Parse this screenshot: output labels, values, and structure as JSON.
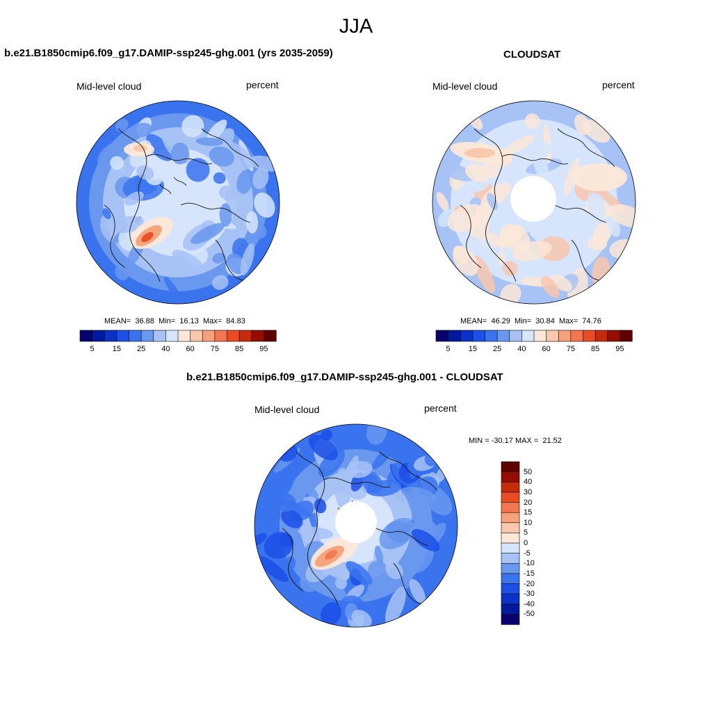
{
  "season": "JJA",
  "colors": {
    "abs_palette": [
      "#08006e",
      "#001a9e",
      "#0a32c8",
      "#1b4fe6",
      "#3a73ee",
      "#6a98ee",
      "#a7c2f4",
      "#d6e5fb",
      "#fce8d8",
      "#f9c7ab",
      "#f5a179",
      "#f2764f",
      "#e94c23",
      "#c52b0a",
      "#960d00",
      "#5e0000"
    ],
    "diff_palette": [
      "#08006e",
      "#001a9e",
      "#0a32c8",
      "#1b4fe6",
      "#3a73ee",
      "#6a98ee",
      "#a7c2f4",
      "#d6e5fb",
      "#fce8d8",
      "#f9c7ab",
      "#f5a179",
      "#f2764f",
      "#e94c23",
      "#c52b0a",
      "#960d00",
      "#5e0000"
    ]
  },
  "panels": [
    {
      "title": "b.e21.B1850cmip6.f09_g17.DAMIP-ssp245-ghg.001 (yrs 2035-2059)",
      "variable": "Mid-level cloud",
      "units": "percent",
      "mean_label": "MEAN=",
      "mean": "36.88",
      "min_label": "Min=",
      "min": "16.13",
      "max_label": "Max=",
      "max": "84.83",
      "polar_hole": false
    },
    {
      "title": "CLOUDSAT",
      "variable": "Mid-level cloud",
      "units": "percent",
      "mean_label": "MEAN=",
      "mean": "46.29",
      "min_label": "Min=",
      "min": "30.84",
      "max_label": "Max=",
      "max": "74.76",
      "polar_hole": true
    }
  ],
  "abs_colorbar_labels": [
    "5",
    "15",
    "25",
    "40",
    "60",
    "75",
    "85",
    "95"
  ],
  "diff_panel": {
    "title": "b.e21.B1850cmip6.f09_g17.DAMIP-ssp245-ghg.001 - CLOUDSAT",
    "variable": "Mid-level cloud",
    "units": "percent",
    "minmax": "MIN = -30.17 MAX =  21.52",
    "colorbar_labels": [
      "50",
      "40",
      "30",
      "20",
      "15",
      "10",
      "5",
      "0",
      "-5",
      "-10",
      "-15",
      "-20",
      "-30",
      "-40",
      "-50"
    ]
  }
}
